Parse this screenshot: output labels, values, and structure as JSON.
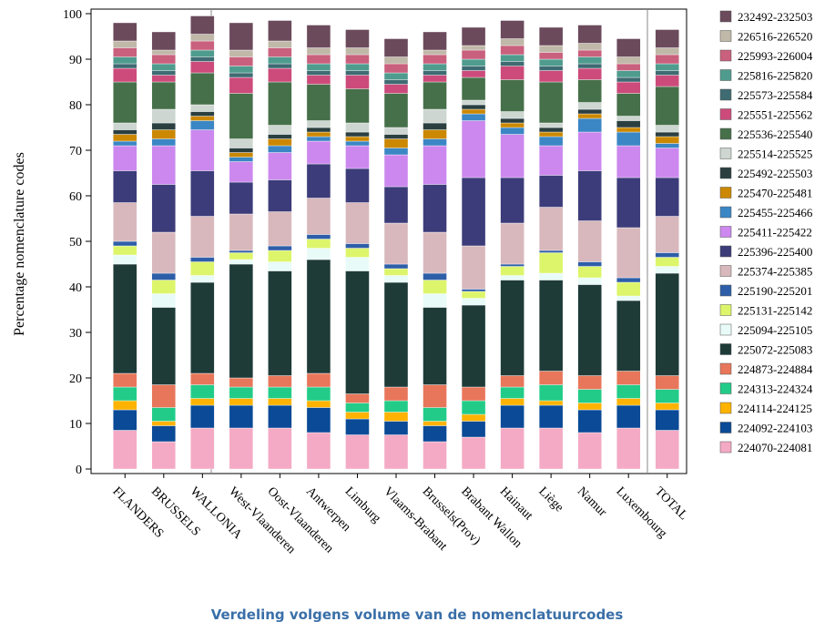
{
  "chart_data": {
    "type": "stacked-bar",
    "title": "Verdeling volgens volume van de nomenclatuurcodes",
    "y_label": "Percentage nomenclature codes",
    "categories": [
      "FLANDERS",
      "BRUSSELS",
      "WALLONIA",
      "West-Vlaanderen",
      "Oost-Vlaanderen",
      "Antwerpen",
      "Limburg",
      "Vlaams-Brabant",
      "Brussels(Prov)",
      "Brabant Wallon",
      "Hainaut",
      "Liège",
      "Namur",
      "Luxembourg",
      "TOTAL"
    ],
    "ylim": [
      -1,
      101
    ],
    "yticks": [
      0,
      10,
      20,
      30,
      40,
      50,
      60,
      70,
      80,
      90,
      100
    ],
    "series": [
      {
        "name": "224070-224081",
        "color": "#f4aac4",
        "values": [
          8.5,
          6,
          9,
          9,
          9,
          8,
          7.5,
          7.5,
          6,
          7,
          9,
          9,
          8,
          9,
          8.5
        ]
      },
      {
        "name": "224092-224103",
        "color": "#0a4a96",
        "values": [
          4.5,
          3.5,
          5,
          5,
          5,
          5.5,
          3.5,
          3,
          3.5,
          3.5,
          5,
          5,
          5,
          5,
          4.5
        ]
      },
      {
        "name": "224114-224125",
        "color": "#ffb300",
        "values": [
          2,
          1,
          1.5,
          1.5,
          1.5,
          1.5,
          1.5,
          2,
          1,
          1.5,
          1.5,
          1,
          1.5,
          1.5,
          1.5
        ]
      },
      {
        "name": "224313-224324",
        "color": "#22cc88",
        "values": [
          3,
          3,
          3,
          2.5,
          2.5,
          3,
          2,
          2.5,
          3,
          3,
          2.5,
          3.5,
          3,
          3,
          3
        ]
      },
      {
        "name": "224873-224884",
        "color": "#e8765a",
        "values": [
          3,
          5,
          2.5,
          2,
          2.5,
          3,
          2,
          3,
          5,
          3,
          2.5,
          3,
          3,
          3,
          3
        ]
      },
      {
        "name": "225072-225083",
        "color": "#1e3b38",
        "values": [
          24,
          17,
          20,
          25,
          23,
          25,
          27,
          23,
          17,
          18,
          21,
          20,
          20,
          15.5,
          22.5
        ]
      },
      {
        "name": "225094-225105",
        "color": "#e8fbf8",
        "values": [
          2,
          3,
          1.5,
          1,
          2,
          2.5,
          3,
          1.5,
          3,
          1.5,
          1,
          1.5,
          1.5,
          1,
          1.5
        ]
      },
      {
        "name": "225131-225142",
        "color": "#ddf56a",
        "values": [
          2,
          3,
          3,
          1.5,
          2.5,
          2,
          2,
          1.5,
          3,
          1.5,
          2,
          4.5,
          2.5,
          3,
          2
        ]
      },
      {
        "name": "225190-225201",
        "color": "#2e5ea8",
        "values": [
          1,
          1.5,
          1,
          0.5,
          1,
          1,
          1,
          1,
          1.5,
          0.5,
          0.5,
          0.5,
          1,
          1,
          1
        ]
      },
      {
        "name": "225374-225385",
        "color": "#d8b8bc",
        "values": [
          8.5,
          9,
          9,
          8,
          7.5,
          8,
          9,
          9,
          9,
          9.5,
          9,
          9.5,
          9,
          11,
          8
        ]
      },
      {
        "name": "225396-225400",
        "color": "#3c3c7a",
        "values": [
          7,
          10.5,
          10,
          7,
          7,
          7.5,
          7.5,
          8,
          10.5,
          15,
          10,
          7,
          11,
          11,
          8.5
        ]
      },
      {
        "name": "225411-225422",
        "color": "#cc88ee",
        "values": [
          5.5,
          8.5,
          9,
          4.5,
          6,
          5,
          5,
          7,
          8.5,
          12.5,
          9.5,
          6.5,
          8.5,
          7,
          6.5
        ]
      },
      {
        "name": "225455-225466",
        "color": "#3b86c4",
        "values": [
          1,
          1.5,
          2,
          1,
          1.5,
          1,
          1,
          1.5,
          1.5,
          1.5,
          1.5,
          2,
          3,
          3,
          1
        ]
      },
      {
        "name": "225470-225481",
        "color": "#cc8800",
        "values": [
          1.5,
          2,
          1,
          1,
          1.5,
          1,
          1,
          2,
          2,
          1,
          1,
          1,
          1,
          1,
          1.5
        ]
      },
      {
        "name": "225492-225503",
        "color": "#2b3f40",
        "values": [
          1,
          1.5,
          1,
          1,
          1,
          1,
          1,
          1,
          1.5,
          1,
          1,
          1,
          1,
          1.5,
          1
        ]
      },
      {
        "name": "225514-225525",
        "color": "#cdd6d0",
        "values": [
          1.5,
          3,
          1.5,
          2,
          2,
          1.5,
          2,
          1.5,
          3,
          1,
          1.5,
          1,
          1.5,
          1,
          1.5
        ]
      },
      {
        "name": "225536-225540",
        "color": "#46704a",
        "values": [
          9,
          6,
          7,
          10,
          9.5,
          8,
          7.5,
          7.5,
          6,
          5,
          7,
          9,
          5,
          5,
          8.5
        ]
      },
      {
        "name": "225551-225562",
        "color": "#cc4b7b",
        "values": [
          3,
          1.5,
          2.5,
          3.5,
          3,
          2,
          3,
          2,
          1.5,
          1.5,
          3,
          2.5,
          2.5,
          2.5,
          2.5
        ]
      },
      {
        "name": "225573-225584",
        "color": "#3f6b73",
        "values": [
          1,
          1,
          1,
          1,
          1,
          1,
          1,
          1,
          1,
          1,
          1,
          1,
          1,
          1,
          1
        ]
      },
      {
        "name": "225816-225820",
        "color": "#4f9c8e",
        "values": [
          1.5,
          1.5,
          1.5,
          1.5,
          1.5,
          1.5,
          1.5,
          1.5,
          1.5,
          1.5,
          1.5,
          1.5,
          1.5,
          1.5,
          1.5
        ]
      },
      {
        "name": "225993-226004",
        "color": "#c9607d",
        "values": [
          2,
          2,
          2,
          2,
          2,
          2,
          2,
          2,
          2,
          2,
          2,
          1.5,
          1.5,
          1.5,
          2
        ]
      },
      {
        "name": "226516-226520",
        "color": "#c0b8a8",
        "values": [
          1.5,
          1,
          1.5,
          1.5,
          1.5,
          1.5,
          1.5,
          1.5,
          1,
          1,
          1.5,
          1.5,
          1.5,
          1.5,
          1.5
        ]
      },
      {
        "name": "232492-232503",
        "color": "#6b4a5b",
        "values": [
          4,
          4,
          4,
          6,
          4.5,
          5,
          4,
          4,
          4,
          4,
          4,
          4,
          4,
          4,
          4
        ]
      }
    ]
  }
}
